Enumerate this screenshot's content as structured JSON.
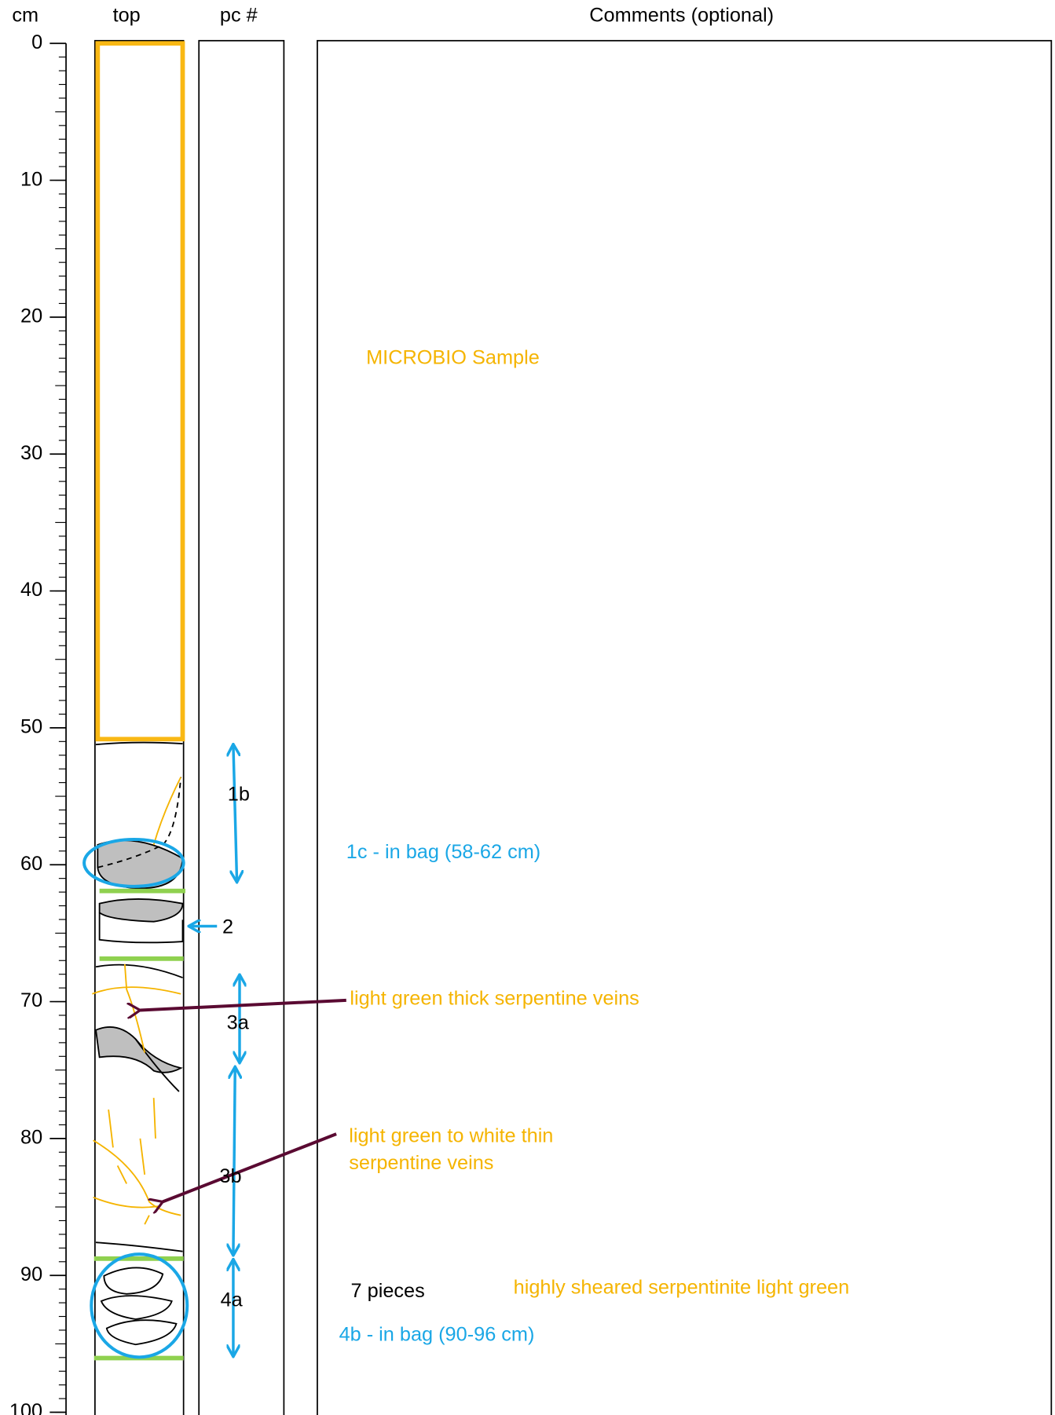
{
  "headers": {
    "depth": "cm",
    "top": "top",
    "piece": "pc #",
    "comments": "Comments (optional)"
  },
  "depth_axis": {
    "lim": [
      0,
      100
    ],
    "ticks": [
      0,
      10,
      20,
      30,
      40,
      50,
      60,
      70,
      80,
      90,
      100
    ]
  },
  "pieces": [
    "1b",
    "2",
    "3a",
    "3b",
    "4a"
  ],
  "comments": {
    "microbio": "MICROBIO Sample",
    "bag_1c": "1c - in bag (58-62 cm)",
    "thick_veins": "light green thick serpentine veins",
    "thin_veins": [
      "light green to white thin",
      "serpentine veins"
    ],
    "count": "7 pieces",
    "sheared": "highly sheared serpentinite light green",
    "bag_4b": "4b - in bag (90-96 cm)"
  }
}
